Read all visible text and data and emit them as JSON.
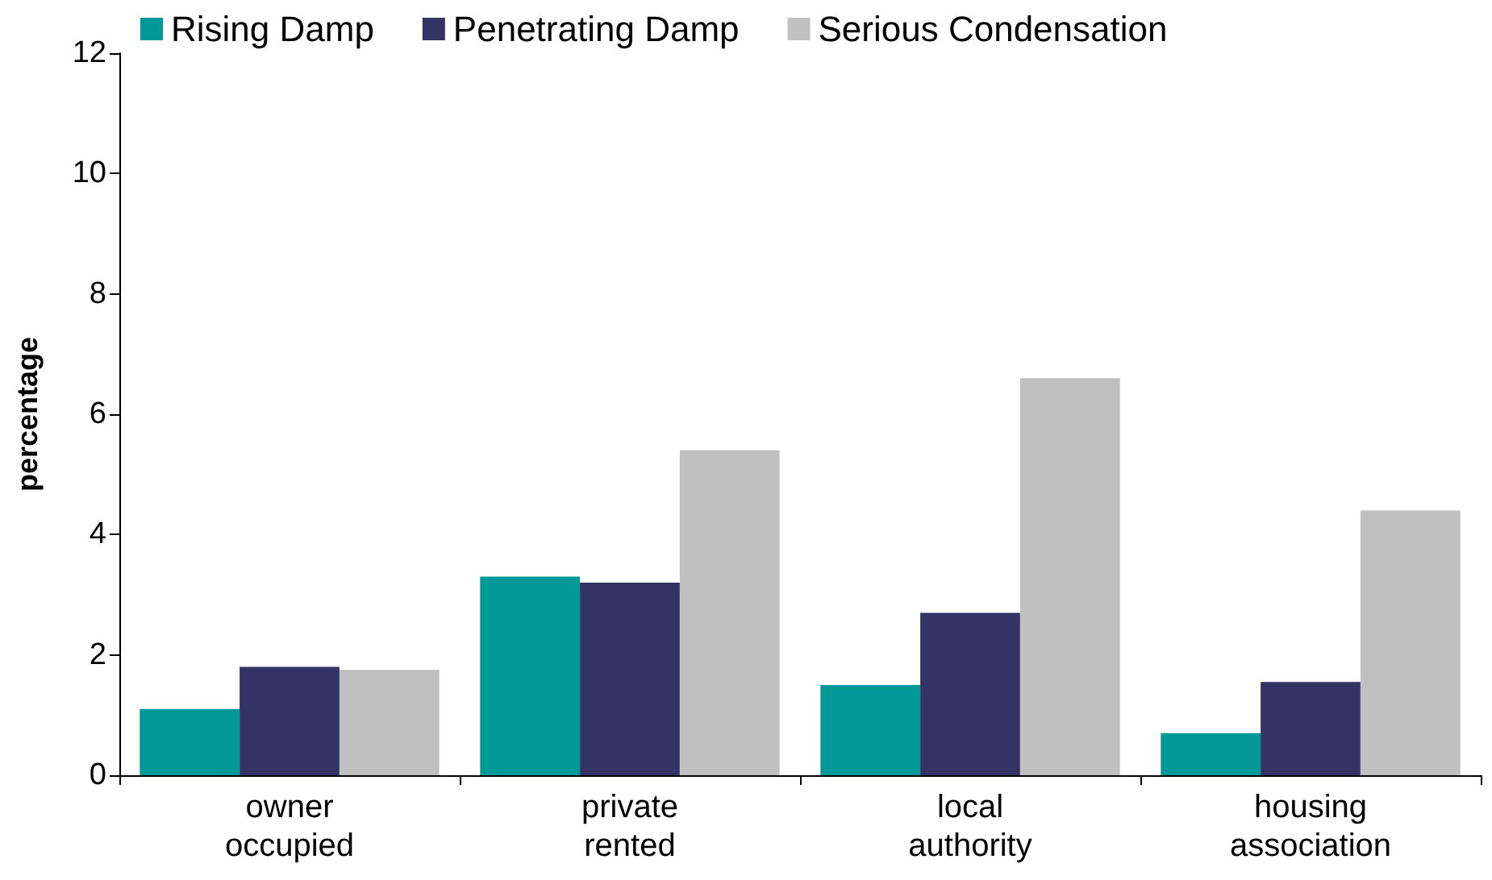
{
  "chart_data": {
    "type": "bar",
    "ylabel": "percentage",
    "categories": [
      "owner\noccupied",
      "private\nrented",
      "local\nauthority",
      "housing\nassociation"
    ],
    "series": [
      {
        "name": "Rising Damp",
        "color": "#009999",
        "values": [
          1.1,
          3.3,
          1.5,
          0.7
        ]
      },
      {
        "name": "Penetrating Damp",
        "color": "#333366",
        "values": [
          1.8,
          3.2,
          2.7,
          1.55
        ]
      },
      {
        "name": "Serious Condensation",
        "color": "#c0c0c0",
        "values": [
          1.75,
          5.4,
          6.6,
          4.4
        ]
      }
    ],
    "ylim": [
      0,
      12
    ],
    "yticks": [
      0,
      2,
      4,
      6,
      8,
      10,
      12
    ],
    "grid": false,
    "legend": "top left"
  }
}
